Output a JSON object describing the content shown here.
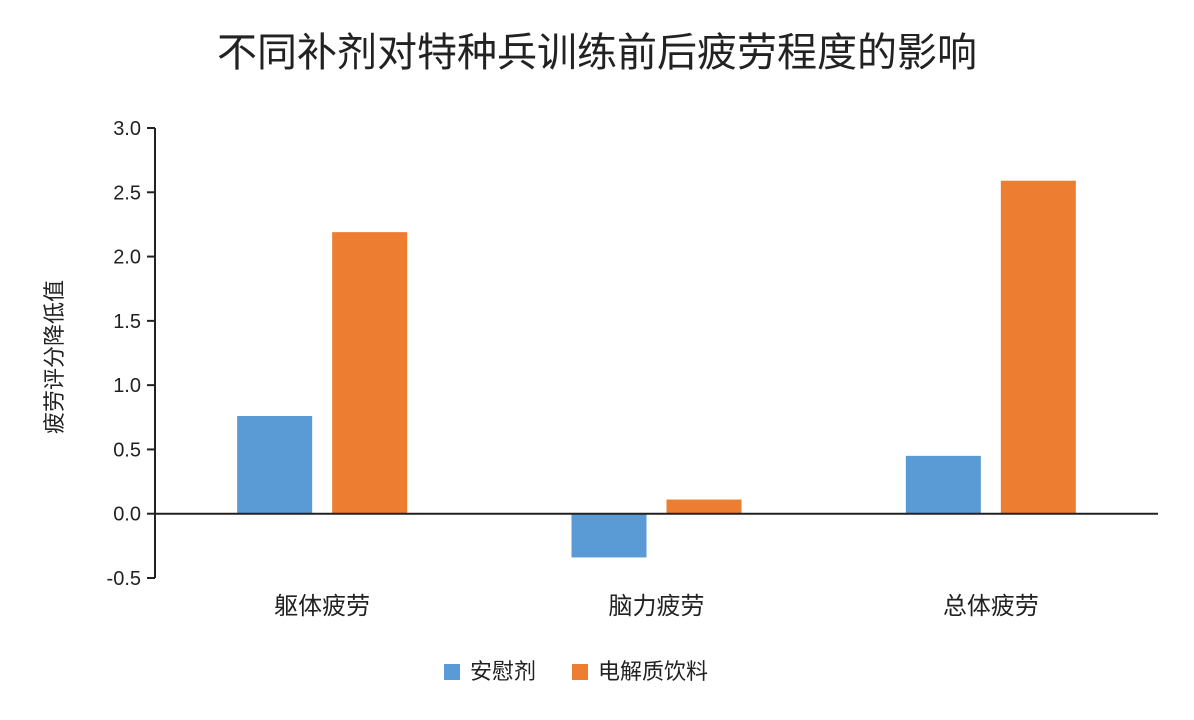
{
  "chart_data": {
    "type": "bar",
    "title": "不同补剂对特种兵训练前后疲劳程度的影响",
    "xlabel": "",
    "ylabel": "疲劳评分降低值",
    "categories": [
      "躯体疲劳",
      "脑力疲劳",
      "总体疲劳"
    ],
    "series": [
      {
        "name": "安慰剂",
        "color": "#5B9BD5",
        "values": [
          0.76,
          -0.34,
          0.45
        ]
      },
      {
        "name": "电解质饮料",
        "color": "#ED7D31",
        "values": [
          2.19,
          0.11,
          2.59
        ]
      }
    ],
    "ylim": [
      -0.5,
      3.0
    ],
    "yticks": [
      "-0.5",
      "0.0",
      "0.5",
      "1.0",
      "1.5",
      "2.0",
      "2.5",
      "3.0"
    ],
    "ytick_values": [
      -0.5,
      0.0,
      0.5,
      1.0,
      1.5,
      2.0,
      2.5,
      3.0
    ],
    "grid": false,
    "legend_position": "bottom"
  }
}
